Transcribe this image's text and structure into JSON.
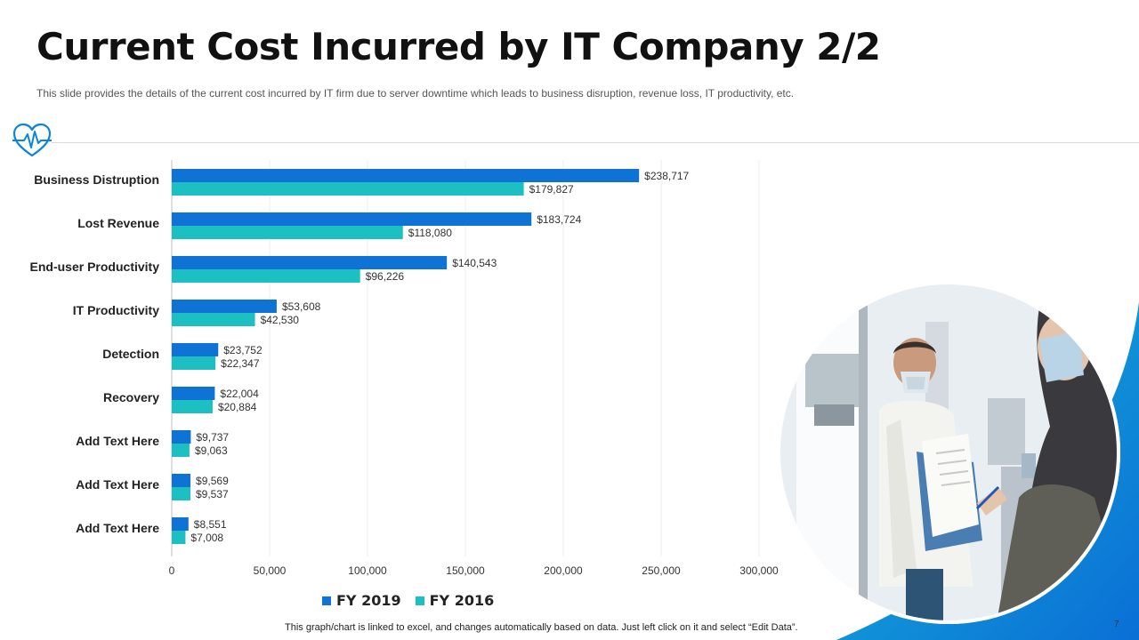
{
  "header": {
    "title": "Current Cost Incurred by IT Company 2/2",
    "subtitle": "This slide provides the details of the current cost incurred by IT firm due to server downtime which leads to business disruption, revenue loss, IT productivity, etc."
  },
  "footer": {
    "note": "This graph/chart is linked to excel, and changes automatically based on data. Just left click on it and select “Edit Data”.",
    "page_number": "7"
  },
  "colors": {
    "fy2019": "#0F72D5",
    "fy2016": "#1DC0C2",
    "accent": "#0B84E0"
  },
  "icons": [
    "heart-pulse-icon"
  ],
  "chart_data": {
    "type": "bar",
    "orientation": "horizontal",
    "title": "",
    "xlabel": "",
    "ylabel": "",
    "xlim": [
      0,
      300000
    ],
    "ticks": [
      0,
      50000,
      100000,
      150000,
      200000,
      250000,
      300000
    ],
    "tick_labels": [
      "0",
      "50,000",
      "100,000",
      "150,000",
      "200,000",
      "250,000",
      "300,000"
    ],
    "categories": [
      "Business Distruption",
      "Lost Revenue",
      "End-user Productivity",
      "IT Productivity",
      "Detection",
      "Recovery",
      "Add Text Here",
      "Add Text Here",
      "Add Text Here"
    ],
    "series": [
      {
        "name": "FY 2019",
        "color": "#0F72D5",
        "values": [
          238717,
          183724,
          140543,
          53608,
          23752,
          22004,
          9737,
          9569,
          8551
        ],
        "labels": [
          "$238,717",
          "$183,724",
          "$140,543",
          "$53,608",
          "$23,752",
          "$22,004",
          "$9,737",
          "$9,569",
          "$8,551"
        ]
      },
      {
        "name": "FY 2016",
        "color": "#1DC0C2",
        "values": [
          179827,
          118080,
          96226,
          42530,
          22347,
          20884,
          9063,
          9537,
          7008
        ],
        "labels": [
          "$179,827",
          "$118,080",
          "$96,226",
          "$42,530",
          "$22,347",
          "$20,884",
          "$9,063",
          "$9,537",
          "$7,008"
        ]
      }
    ],
    "grid": true,
    "legend_position": "bottom"
  }
}
